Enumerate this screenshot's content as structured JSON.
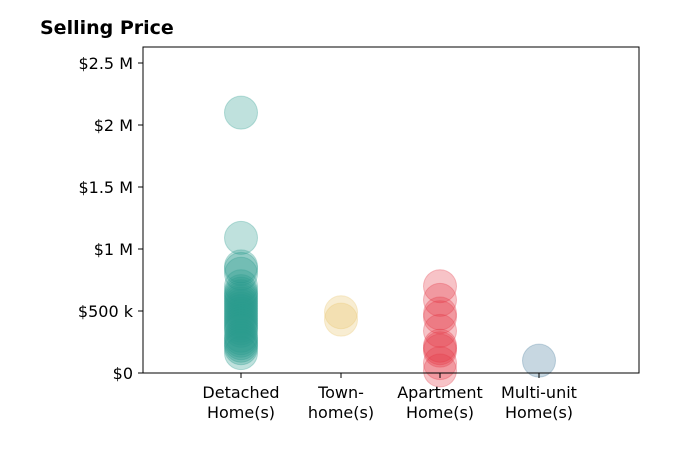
{
  "chart_data": {
    "type": "scatter",
    "ylabel": "Selling Price",
    "ylim": [
      0,
      2620000
    ],
    "yticks": [
      {
        "value": 0,
        "label": "$0"
      },
      {
        "value": 500000,
        "label": "$500 k"
      },
      {
        "value": 1000000,
        "label": "$1 M"
      },
      {
        "value": 1500000,
        "label": "$1.5 M"
      },
      {
        "value": 2000000,
        "label": "$2 M"
      },
      {
        "value": 2500000,
        "label": "$2.5 M"
      }
    ],
    "categories": [
      {
        "label_lines": [
          "Detached",
          "Home(s)"
        ]
      },
      {
        "label_lines": [
          "Town-",
          "home(s)"
        ]
      },
      {
        "label_lines": [
          "Apartment",
          "Home(s)"
        ]
      },
      {
        "label_lines": [
          "Multi-unit",
          "Home(s)"
        ]
      }
    ],
    "series": [
      {
        "category_index": 0,
        "color": "#2a9d8f",
        "values": [
          2100000,
          1090000,
          860000,
          840000,
          800000,
          700000,
          660000,
          640000,
          620000,
          600000,
          580000,
          560000,
          540000,
          520000,
          500000,
          480000,
          460000,
          440000,
          420000,
          400000,
          380000,
          360000,
          340000,
          300000,
          280000,
          260000,
          240000,
          220000,
          200000,
          160000
        ]
      },
      {
        "category_index": 1,
        "color": "#e9c46a",
        "values": [
          490000,
          430000
        ]
      },
      {
        "category_index": 2,
        "color": "#e63946",
        "values": [
          700000,
          590000,
          480000,
          450000,
          340000,
          220000,
          200000,
          180000,
          80000,
          20000
        ]
      },
      {
        "category_index": 3,
        "color": "#457b9d",
        "values": [
          100000
        ]
      }
    ],
    "grid": false,
    "legend": "none"
  }
}
